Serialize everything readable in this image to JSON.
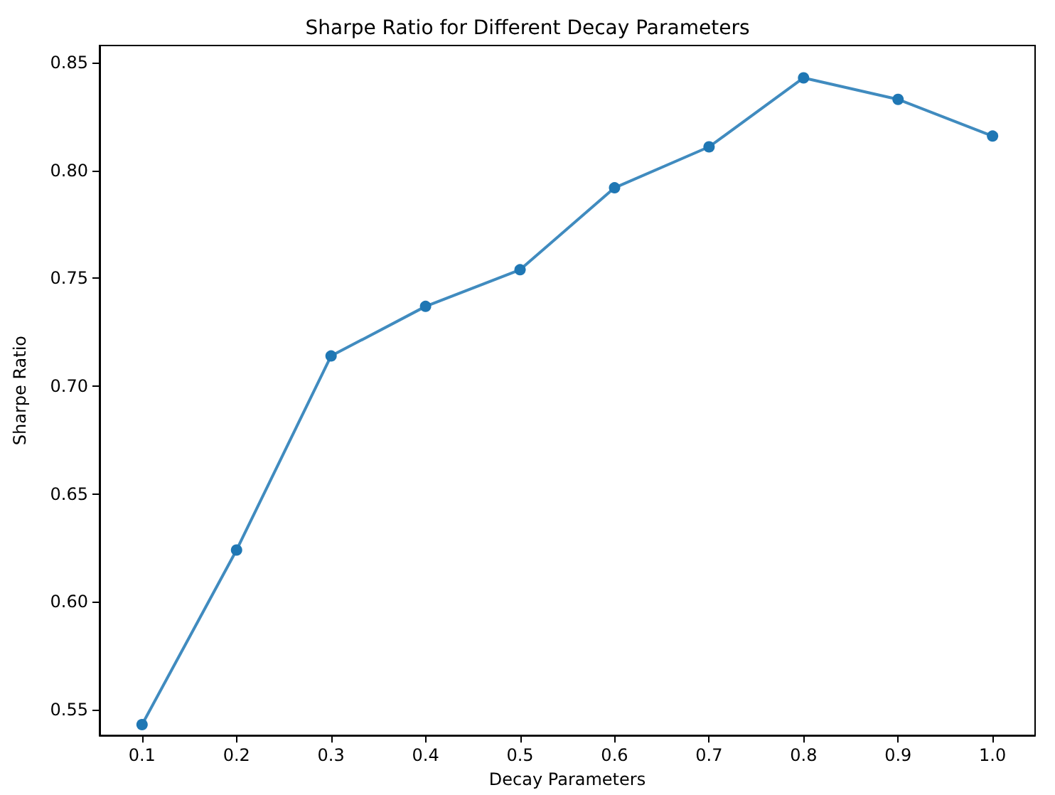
{
  "chart_data": {
    "type": "line",
    "title": "Sharpe Ratio for Different Decay Parameters",
    "xlabel": "Decay Parameters",
    "ylabel": "Sharpe Ratio",
    "x": [
      0.1,
      0.2,
      0.3,
      0.4,
      0.5,
      0.6,
      0.7,
      0.8,
      0.9,
      1.0
    ],
    "series": [
      {
        "color": "#1f77b4",
        "values": [
          0.543,
          0.624,
          0.714,
          0.737,
          0.754,
          0.792,
          0.811,
          0.843,
          0.833,
          0.816
        ]
      }
    ],
    "xlim": [
      0.055,
      1.045
    ],
    "xticks": [
      {
        "value": 0.1,
        "label": "0.1"
      },
      {
        "value": 0.2,
        "label": "0.2"
      },
      {
        "value": 0.3,
        "label": "0.3"
      },
      {
        "value": 0.4,
        "label": "0.4"
      },
      {
        "value": 0.5,
        "label": "0.5"
      },
      {
        "value": 0.6,
        "label": "0.6"
      },
      {
        "value": 0.7,
        "label": "0.7"
      },
      {
        "value": 0.8,
        "label": "0.8"
      },
      {
        "value": 0.9,
        "label": "0.9"
      },
      {
        "value": 1.0,
        "label": "1.0"
      }
    ],
    "ylim": [
      0.538,
      0.858
    ],
    "yticks": [
      {
        "value": 0.55,
        "label": "0.55"
      },
      {
        "value": 0.6,
        "label": "0.60"
      },
      {
        "value": 0.65,
        "label": "0.65"
      },
      {
        "value": 0.7,
        "label": "0.70"
      },
      {
        "value": 0.75,
        "label": "0.75"
      },
      {
        "value": 0.8,
        "label": "0.80"
      },
      {
        "value": 0.85,
        "label": "0.85"
      }
    ],
    "grid": false,
    "marker": "circle",
    "line_style": "solid"
  }
}
